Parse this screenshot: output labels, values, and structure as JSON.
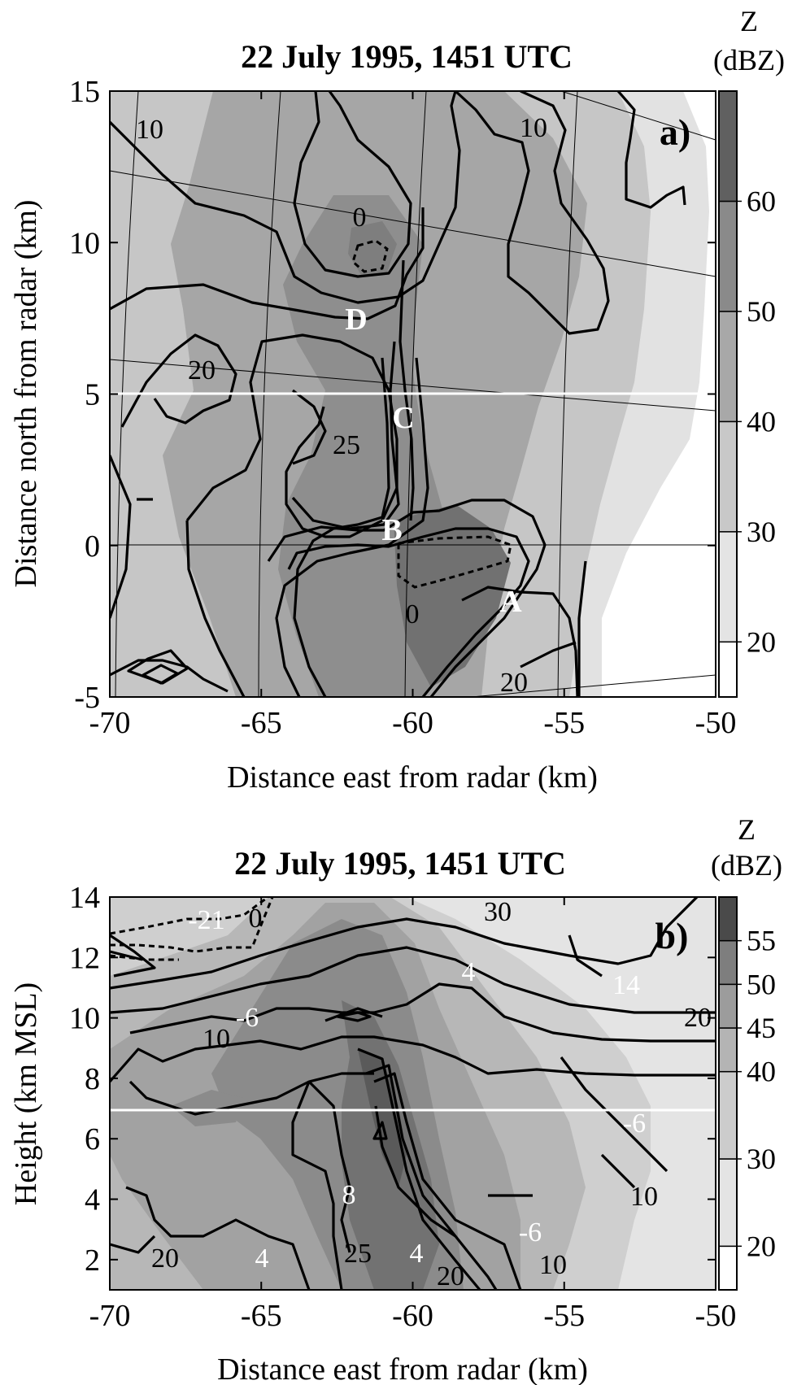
{
  "chart_data": [
    {
      "type": "heatmap",
      "panel_label": "a)",
      "title": "22 July 1995, 1451 UTC",
      "xlabel": "Distance east from radar (km)",
      "ylabel": "Distance north from radar (km)",
      "xlim": [
        -70,
        -50
      ],
      "ylim": [
        -5,
        15
      ],
      "xticks": [
        "-70",
        "-65",
        "-60",
        "-55",
        "-50"
      ],
      "yticks": [
        "-5",
        "0",
        "5",
        "10",
        "15"
      ],
      "colorbar": {
        "label": "Z",
        "units": "(dBZ)",
        "ticks": [
          "20",
          "30",
          "40",
          "50",
          "60"
        ],
        "range": [
          15,
          70
        ]
      },
      "contour_labels": [
        "10",
        "10",
        "0",
        "20",
        "25",
        "0",
        "20"
      ],
      "point_labels": [
        "A",
        "B",
        "C",
        "D"
      ],
      "reference_line_y": 5
    },
    {
      "type": "heatmap",
      "panel_label": "b)",
      "title": "22 July 1995, 1451 UTC",
      "xlabel": "Distance east from radar (km)",
      "ylabel": "Height (km MSL)",
      "xlim": [
        -70,
        -50
      ],
      "ylim": [
        1,
        14
      ],
      "xticks": [
        "-70",
        "-65",
        "-60",
        "-55",
        "-50"
      ],
      "yticks": [
        "2",
        "4",
        "6",
        "8",
        "10",
        "12",
        "14"
      ],
      "colorbar": {
        "label": "Z",
        "units": "(dBZ)",
        "ticks": [
          "20",
          "30",
          "40",
          "45",
          "50",
          "55"
        ],
        "range": [
          15,
          60
        ]
      },
      "contour_labels": [
        "-21",
        "0",
        "30",
        "4",
        "14",
        "20",
        "-6",
        "10",
        "-6",
        "10",
        "8",
        "-6",
        "25",
        "4",
        "20",
        "20",
        "4",
        "10"
      ],
      "reference_line_y": 6
    }
  ]
}
